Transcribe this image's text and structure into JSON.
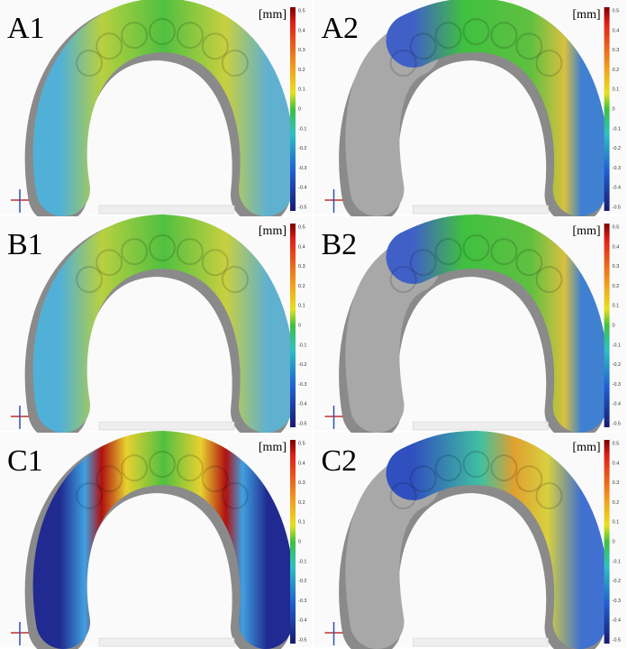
{
  "panels": [
    {
      "label": "A1"
    },
    {
      "label": "A2"
    },
    {
      "label": "B1"
    },
    {
      "label": "B2"
    },
    {
      "label": "C1"
    },
    {
      "label": "C2"
    }
  ],
  "colorbar": {
    "unit": "[mm]",
    "ticks": [
      "0.5",
      "0.4",
      "0.3",
      "0.2",
      "0.1",
      "0",
      "-0.1",
      "-0.2",
      "-0.3",
      "-0.4",
      "-0.5"
    ]
  }
}
